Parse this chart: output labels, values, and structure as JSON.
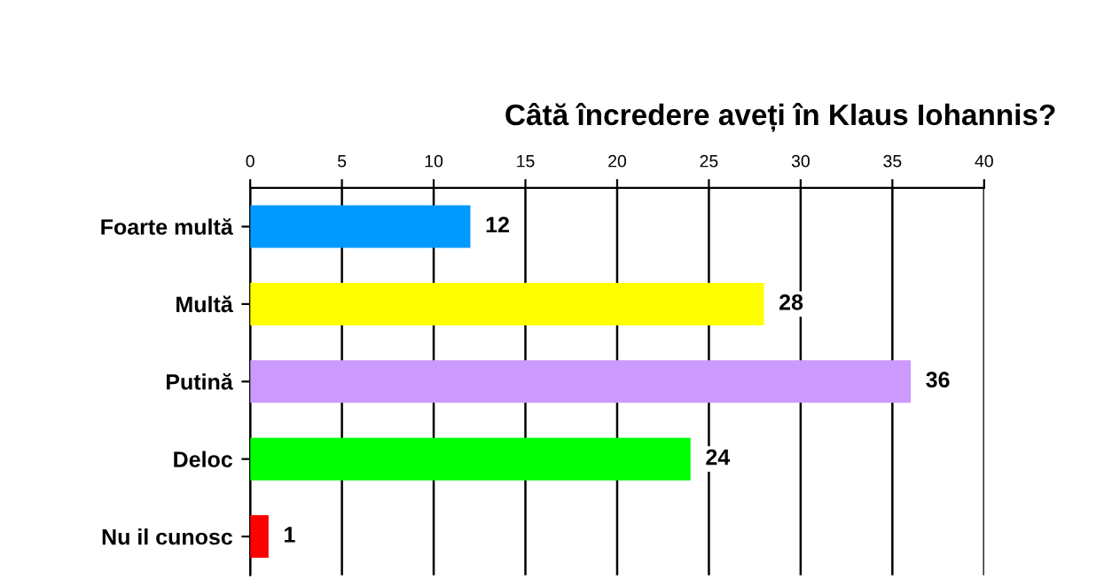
{
  "chart_data": {
    "type": "bar",
    "orientation": "horizontal",
    "title": "Câtă încredere aveți în Klaus Iohannis?",
    "categories": [
      "Foarte multă",
      "Multă",
      "Putină",
      "Deloc",
      "Nu il cunosc"
    ],
    "values": [
      12,
      28,
      36,
      24,
      1
    ],
    "colors": [
      "#0099ff",
      "#ffff00",
      "#cc99ff",
      "#00ff00",
      "#ff0000"
    ],
    "xlim": [
      0,
      40
    ],
    "xticks": [
      0,
      5,
      10,
      15,
      20,
      25,
      30,
      35,
      40
    ],
    "grid": "x",
    "data_labels": true
  }
}
